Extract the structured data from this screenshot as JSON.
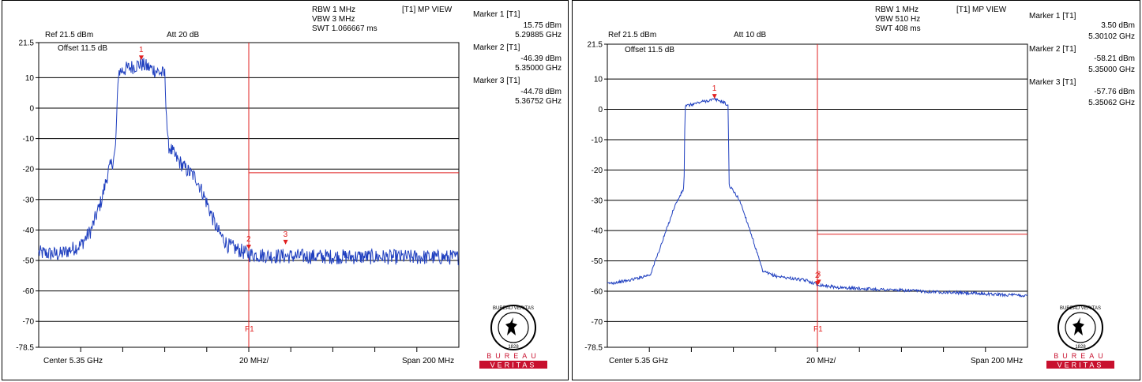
{
  "colors": {
    "trace": "#1f3fbf",
    "marker": "#e02020",
    "grid": "#000000",
    "brand_red": "#c8102e"
  },
  "panels": [
    {
      "header": {
        "rbw": "RBW 1 MHz",
        "vbw": "VBW 3 MHz",
        "swt": "SWT 1.066667 ms",
        "view": "[T1] MP VIEW",
        "ref": "Ref 21.5 dBm",
        "att": "Att  20 dB",
        "offset": "Offset 11.5 dB"
      },
      "markers": [
        {
          "title": "Marker 1 [T1]",
          "level": "15.75 dBm",
          "freq": "5.29885 GHz"
        },
        {
          "title": "Marker 2 [T1]",
          "level": "-46.39 dBm",
          "freq": "5.35000 GHz"
        },
        {
          "title": "Marker 3 [T1]",
          "level": "-44.78 dBm",
          "freq": "5.36752 GHz"
        }
      ],
      "footer": {
        "center": "Center 5.35 GHz",
        "div": "20 MHz/",
        "span": "Span 200 MHz"
      },
      "line_label": "F1"
    },
    {
      "header": {
        "rbw": "RBW 1 MHz",
        "vbw": "VBW 510 Hz",
        "swt": "SWT 408 ms",
        "view": "[T1] MP VIEW",
        "ref": "Ref 21.5 dBm",
        "att": "Att  10 dB",
        "offset": "Offset 11.5 dB"
      },
      "markers": [
        {
          "title": "Marker 1 [T1]",
          "level": "3.50 dBm",
          "freq": "5.30102 GHz"
        },
        {
          "title": "Marker 2 [T1]",
          "level": "-58.21 dBm",
          "freq": "5.35000 GHz"
        },
        {
          "title": "Marker 3 [T1]",
          "level": "-57.76 dBm",
          "freq": "5.35062 GHz"
        }
      ],
      "footer": {
        "center": "Center 5.35 GHz",
        "div": "20 MHz/",
        "span": "Span 200 MHz"
      },
      "line_label": "F1"
    }
  ],
  "logo": {
    "ring_text": "BUREAU VERITAS",
    "year": "1828",
    "word_top": "BUREAU",
    "word_bottom": "VERITAS"
  },
  "chart_data": [
    {
      "type": "line",
      "x_unit": "GHz",
      "xlim": [
        5.25,
        5.45
      ],
      "ylim": [
        -78.5,
        21.5
      ],
      "y_ticks": [
        "21.5",
        "10",
        "0",
        "-10",
        "-20",
        "-30",
        "-40",
        "-50",
        "-60",
        "-70",
        "-78.5"
      ],
      "y_tick_values": [
        21.5,
        10,
        0,
        -10,
        -20,
        -30,
        -40,
        -50,
        -60,
        -70,
        -78.5
      ],
      "series": [
        {
          "x": [
            5.25,
            5.26,
            5.27,
            5.275,
            5.28,
            5.283,
            5.2855,
            5.2865,
            5.288,
            5.2985,
            5.31,
            5.3115,
            5.3125,
            5.315,
            5.32,
            5.325,
            5.33,
            5.335,
            5.34,
            5.35,
            5.36,
            5.38,
            5.4,
            5.42,
            5.45
          ],
          "y": [
            -47.5,
            -48,
            -45,
            -40,
            -30,
            -21,
            -17,
            -14,
            12,
            14.5,
            11,
            -12,
            -13,
            -16,
            -20,
            -23,
            -31,
            -40,
            -45,
            -48,
            -48.5,
            -48.7,
            -48.8,
            -48.9,
            -49
          ]
        }
      ],
      "noise_dB": 2.5,
      "markers": [
        {
          "label": "1",
          "x": 5.29885,
          "y": 15.75
        },
        {
          "label": "2",
          "x": 5.35,
          "y": -46.39
        },
        {
          "label": "3",
          "x": 5.36752,
          "y": -44.78
        }
      ],
      "display_line": {
        "x": 5.35,
        "y": -21.2
      }
    },
    {
      "type": "line",
      "x_unit": "GHz",
      "xlim": [
        5.25,
        5.45
      ],
      "ylim": [
        -78.5,
        21.5
      ],
      "y_ticks": [
        "21.5",
        "10",
        "0",
        "-10",
        "-20",
        "-30",
        "-40",
        "-50",
        "-60",
        "-70",
        "-78.5"
      ],
      "y_tick_values": [
        21.5,
        10,
        0,
        -10,
        -20,
        -30,
        -40,
        -50,
        -60,
        -70,
        -78.5
      ],
      "series": [
        {
          "x": [
            5.25,
            5.26,
            5.2705,
            5.276,
            5.282,
            5.285,
            5.2865,
            5.287,
            5.295,
            5.301,
            5.305,
            5.3075,
            5.308,
            5.3095,
            5.313,
            5.318,
            5.324,
            5.33,
            5.345,
            5.35,
            5.36,
            5.4,
            5.45
          ],
          "y": [
            -57.5,
            -56.5,
            -54.5,
            -44,
            -32,
            -28,
            -26,
            1,
            2.5,
            3.3,
            2.5,
            1.2,
            -25,
            -26.5,
            -30,
            -40,
            -53.5,
            -55,
            -56.5,
            -57.8,
            -58.8,
            -60,
            -61.5
          ]
        }
      ],
      "noise_dB": 0.5,
      "markers": [
        {
          "label": "1",
          "x": 5.30102,
          "y": 3.5
        },
        {
          "label": "2",
          "x": 5.35,
          "y": -58.21
        },
        {
          "label": "3",
          "x": 5.35062,
          "y": -57.76
        }
      ],
      "display_line": {
        "x": 5.35,
        "y": -41.2
      }
    }
  ]
}
